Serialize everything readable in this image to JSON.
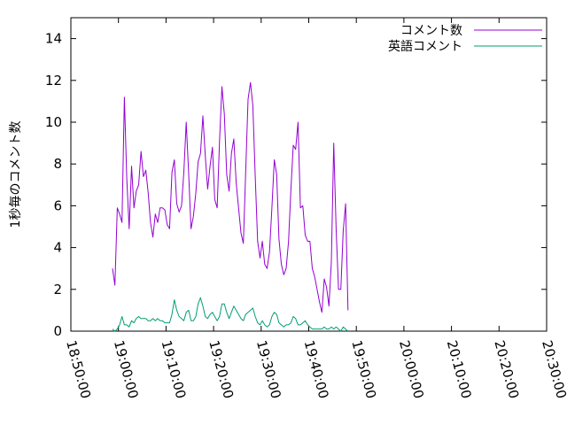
{
  "chart_data": {
    "type": "line",
    "ylabel": "1秒毎のコメント数",
    "xlabel": "",
    "x_tick_labels": [
      "18:50:00",
      "19:00:00",
      "19:10:00",
      "19:20:00",
      "19:30:00",
      "19:40:00",
      "19:50:00",
      "20:00:00",
      "20:10:00",
      "20:20:00",
      "20:30:00"
    ],
    "y_ticks": [
      0,
      2,
      4,
      6,
      8,
      10,
      12,
      14
    ],
    "xlim": [
      "18:50:00",
      "20:30:00"
    ],
    "ylim": [
      0,
      15
    ],
    "grid": false,
    "legend_position": "top-right",
    "series": [
      {
        "name": "コメント数",
        "color": "#9400d3",
        "points": [
          [
            "18:58:45",
            3.0
          ],
          [
            "18:59:15",
            2.2
          ],
          [
            "18:59:45",
            5.9
          ],
          [
            "19:00:15",
            5.6
          ],
          [
            "19:00:45",
            5.2
          ],
          [
            "19:01:15",
            11.2
          ],
          [
            "19:01:45",
            7.3
          ],
          [
            "19:02:15",
            4.9
          ],
          [
            "19:02:45",
            7.9
          ],
          [
            "19:03:15",
            5.9
          ],
          [
            "19:03:45",
            6.7
          ],
          [
            "19:04:15",
            7.0
          ],
          [
            "19:04:45",
            8.6
          ],
          [
            "19:05:15",
            7.4
          ],
          [
            "19:05:45",
            7.7
          ],
          [
            "19:06:15",
            6.6
          ],
          [
            "19:06:45",
            5.2
          ],
          [
            "19:07:15",
            4.5
          ],
          [
            "19:07:45",
            5.6
          ],
          [
            "19:08:15",
            5.2
          ],
          [
            "19:08:45",
            5.9
          ],
          [
            "19:09:15",
            5.9
          ],
          [
            "19:09:45",
            5.8
          ],
          [
            "19:10:15",
            5.1
          ],
          [
            "19:10:45",
            4.9
          ],
          [
            "19:11:15",
            7.6
          ],
          [
            "19:11:45",
            8.2
          ],
          [
            "19:12:15",
            6.1
          ],
          [
            "19:12:45",
            5.7
          ],
          [
            "19:13:15",
            6.0
          ],
          [
            "19:13:45",
            7.6
          ],
          [
            "19:14:15",
            10.0
          ],
          [
            "19:14:45",
            7.6
          ],
          [
            "19:15:15",
            4.9
          ],
          [
            "19:15:45",
            5.5
          ],
          [
            "19:16:15",
            6.6
          ],
          [
            "19:16:45",
            8.1
          ],
          [
            "19:17:15",
            8.5
          ],
          [
            "19:17:45",
            10.3
          ],
          [
            "19:18:15",
            8.4
          ],
          [
            "19:18:45",
            6.8
          ],
          [
            "19:19:15",
            7.9
          ],
          [
            "19:19:45",
            8.8
          ],
          [
            "19:20:15",
            6.3
          ],
          [
            "19:20:45",
            5.9
          ],
          [
            "19:21:15",
            9.1
          ],
          [
            "19:21:45",
            11.7
          ],
          [
            "19:22:15",
            10.4
          ],
          [
            "19:22:45",
            7.5
          ],
          [
            "19:23:15",
            6.7
          ],
          [
            "19:23:45",
            8.5
          ],
          [
            "19:24:15",
            9.2
          ],
          [
            "19:24:45",
            7.1
          ],
          [
            "19:25:15",
            5.9
          ],
          [
            "19:25:45",
            4.7
          ],
          [
            "19:26:15",
            4.2
          ],
          [
            "19:26:45",
            7.6
          ],
          [
            "19:27:15",
            11.1
          ],
          [
            "19:27:45",
            11.9
          ],
          [
            "19:28:15",
            10.8
          ],
          [
            "19:28:45",
            7.4
          ],
          [
            "19:29:15",
            4.3
          ],
          [
            "19:29:45",
            3.5
          ],
          [
            "19:30:15",
            4.3
          ],
          [
            "19:30:45",
            3.2
          ],
          [
            "19:31:15",
            3.0
          ],
          [
            "19:31:45",
            3.8
          ],
          [
            "19:32:15",
            5.9
          ],
          [
            "19:32:45",
            8.2
          ],
          [
            "19:33:15",
            7.5
          ],
          [
            "19:33:45",
            4.4
          ],
          [
            "19:34:15",
            3.2
          ],
          [
            "19:34:45",
            2.7
          ],
          [
            "19:35:15",
            3.0
          ],
          [
            "19:35:45",
            4.3
          ],
          [
            "19:36:15",
            6.8
          ],
          [
            "19:36:45",
            8.9
          ],
          [
            "19:37:15",
            8.7
          ],
          [
            "19:37:45",
            10.0
          ],
          [
            "19:38:15",
            5.9
          ],
          [
            "19:38:45",
            6.0
          ],
          [
            "19:39:15",
            4.6
          ],
          [
            "19:39:45",
            4.3
          ],
          [
            "19:40:15",
            4.3
          ],
          [
            "19:40:45",
            3.0
          ],
          [
            "19:41:15",
            2.6
          ],
          [
            "19:41:45",
            2.0
          ],
          [
            "19:42:15",
            1.4
          ],
          [
            "19:42:45",
            0.9
          ],
          [
            "19:43:15",
            2.5
          ],
          [
            "19:43:45",
            2.1
          ],
          [
            "19:44:15",
            1.2
          ],
          [
            "19:44:45",
            3.3
          ],
          [
            "19:45:15",
            9.0
          ],
          [
            "19:45:45",
            4.9
          ],
          [
            "19:46:15",
            2.0
          ],
          [
            "19:46:45",
            2.0
          ],
          [
            "19:47:15",
            4.8
          ],
          [
            "19:47:45",
            6.1
          ],
          [
            "19:48:15",
            1.0
          ]
        ]
      },
      {
        "name": "英語コメント",
        "color": "#009e73",
        "points": [
          [
            "18:58:45",
            0.1
          ],
          [
            "18:59:15",
            0.0
          ],
          [
            "18:59:45",
            0.1
          ],
          [
            "19:00:15",
            0.3
          ],
          [
            "19:00:45",
            0.7
          ],
          [
            "19:01:15",
            0.3
          ],
          [
            "19:01:45",
            0.3
          ],
          [
            "19:02:15",
            0.2
          ],
          [
            "19:02:45",
            0.5
          ],
          [
            "19:03:15",
            0.4
          ],
          [
            "19:03:45",
            0.6
          ],
          [
            "19:04:15",
            0.7
          ],
          [
            "19:04:45",
            0.6
          ],
          [
            "19:05:15",
            0.6
          ],
          [
            "19:05:45",
            0.6
          ],
          [
            "19:06:15",
            0.5
          ],
          [
            "19:06:45",
            0.5
          ],
          [
            "19:07:15",
            0.6
          ],
          [
            "19:07:45",
            0.5
          ],
          [
            "19:08:15",
            0.6
          ],
          [
            "19:08:45",
            0.5
          ],
          [
            "19:09:15",
            0.5
          ],
          [
            "19:09:45",
            0.4
          ],
          [
            "19:10:15",
            0.4
          ],
          [
            "19:10:45",
            0.4
          ],
          [
            "19:11:15",
            0.8
          ],
          [
            "19:11:45",
            1.5
          ],
          [
            "19:12:15",
            1.0
          ],
          [
            "19:12:45",
            0.7
          ],
          [
            "19:13:15",
            0.6
          ],
          [
            "19:13:45",
            0.5
          ],
          [
            "19:14:15",
            0.9
          ],
          [
            "19:14:45",
            1.0
          ],
          [
            "19:15:15",
            0.5
          ],
          [
            "19:15:45",
            0.5
          ],
          [
            "19:16:15",
            0.7
          ],
          [
            "19:16:45",
            1.3
          ],
          [
            "19:17:15",
            1.6
          ],
          [
            "19:17:45",
            1.2
          ],
          [
            "19:18:15",
            0.7
          ],
          [
            "19:18:45",
            0.6
          ],
          [
            "19:19:15",
            0.8
          ],
          [
            "19:19:45",
            0.9
          ],
          [
            "19:20:15",
            0.7
          ],
          [
            "19:20:45",
            0.5
          ],
          [
            "19:21:15",
            0.7
          ],
          [
            "19:21:45",
            1.3
          ],
          [
            "19:22:15",
            1.3
          ],
          [
            "19:22:45",
            0.9
          ],
          [
            "19:23:15",
            0.6
          ],
          [
            "19:23:45",
            0.9
          ],
          [
            "19:24:15",
            1.2
          ],
          [
            "19:24:45",
            1.0
          ],
          [
            "19:25:15",
            0.8
          ],
          [
            "19:25:45",
            0.6
          ],
          [
            "19:26:15",
            0.5
          ],
          [
            "19:26:45",
            0.8
          ],
          [
            "19:27:15",
            0.9
          ],
          [
            "19:27:45",
            1.0
          ],
          [
            "19:28:15",
            1.1
          ],
          [
            "19:28:45",
            0.7
          ],
          [
            "19:29:15",
            0.4
          ],
          [
            "19:29:45",
            0.3
          ],
          [
            "19:30:15",
            0.5
          ],
          [
            "19:30:45",
            0.3
          ],
          [
            "19:31:15",
            0.2
          ],
          [
            "19:31:45",
            0.3
          ],
          [
            "19:32:15",
            0.7
          ],
          [
            "19:32:45",
            0.9
          ],
          [
            "19:33:15",
            0.8
          ],
          [
            "19:33:45",
            0.4
          ],
          [
            "19:34:15",
            0.3
          ],
          [
            "19:34:45",
            0.2
          ],
          [
            "19:35:15",
            0.3
          ],
          [
            "19:35:45",
            0.3
          ],
          [
            "19:36:15",
            0.4
          ],
          [
            "19:36:45",
            0.7
          ],
          [
            "19:37:15",
            0.6
          ],
          [
            "19:37:45",
            0.3
          ],
          [
            "19:38:15",
            0.3
          ],
          [
            "19:38:45",
            0.4
          ],
          [
            "19:39:15",
            0.5
          ],
          [
            "19:39:45",
            0.3
          ],
          [
            "19:40:15",
            0.2
          ],
          [
            "19:40:45",
            0.1
          ],
          [
            "19:41:15",
            0.1
          ],
          [
            "19:41:45",
            0.1
          ],
          [
            "19:42:15",
            0.1
          ],
          [
            "19:42:45",
            0.1
          ],
          [
            "19:43:15",
            0.2
          ],
          [
            "19:43:45",
            0.1
          ],
          [
            "19:44:15",
            0.1
          ],
          [
            "19:44:45",
            0.2
          ],
          [
            "19:45:15",
            0.1
          ],
          [
            "19:45:45",
            0.2
          ],
          [
            "19:46:15",
            0.1
          ],
          [
            "19:46:45",
            0.0
          ],
          [
            "19:47:15",
            0.2
          ],
          [
            "19:47:45",
            0.1
          ],
          [
            "19:48:15",
            0.0
          ]
        ]
      }
    ]
  }
}
